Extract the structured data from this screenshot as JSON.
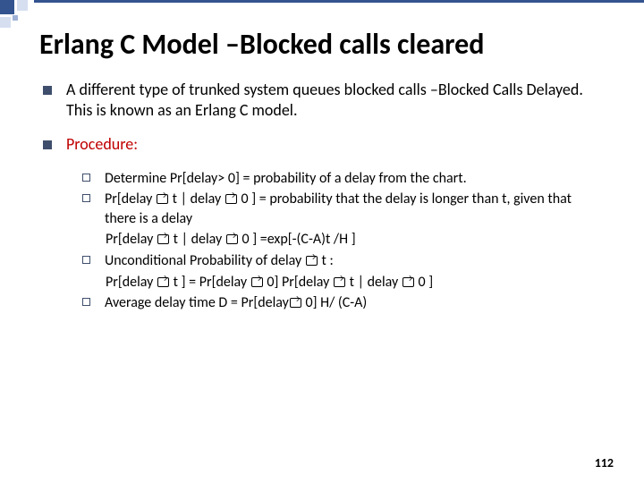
{
  "title": "Erlang C Model –Blocked calls cleared",
  "bullet1": "A different type of trunked system queues blocked calls –Blocked Calls Delayed. This is known as an Erlang C model.",
  "procedure_label": "Procedure:",
  "sub1": "Determine Pr[delay> 0] = probability of a delay from the chart.",
  "sub2a": "Pr[delay ",
  "sub2b": " t | delay ",
  "sub2c": " 0 ] = probability that the delay is longer than t, given that there is a delay",
  "sub2_line2a": " Pr[delay ",
  "sub2_line2b": " t | delay ",
  "sub2_line2c": " 0 ] =exp[-(C-A)t /H ]",
  "sub3a": "Unconditional Probability of delay ",
  "sub3b": " t :",
  "sub3_line2a": " Pr[delay ",
  "sub3_line2b": " t ] = Pr[delay ",
  "sub3_line2c": " 0] Pr[delay ",
  "sub3_line2d": " t | delay ",
  "sub3_line2e": " 0 ]",
  "sub4a": "Average delay time D = Pr[delay",
  "sub4b": " 0] H/ (C-A)",
  "page_number": "112"
}
